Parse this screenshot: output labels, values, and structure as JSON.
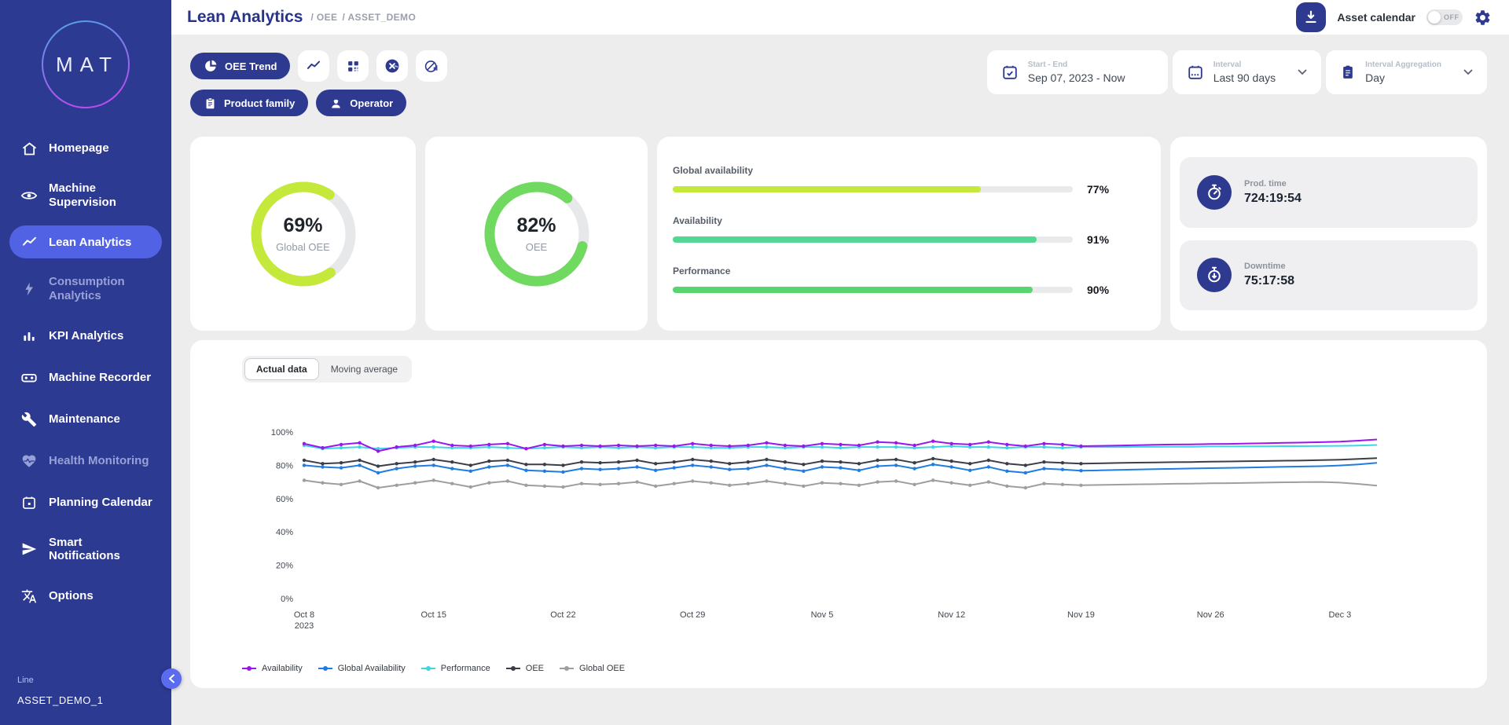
{
  "sidebar": {
    "logo": "MAT",
    "items": [
      {
        "label": "Homepage",
        "icon": "home-icon",
        "active": false,
        "dimmed": false
      },
      {
        "label": "Machine Supervision",
        "icon": "eye-icon",
        "active": false,
        "dimmed": false
      },
      {
        "label": "Lean Analytics",
        "icon": "trend-line-icon",
        "active": true,
        "dimmed": false
      },
      {
        "label": "Consumption Analytics",
        "icon": "lightning-icon",
        "active": false,
        "dimmed": true
      },
      {
        "label": "KPI Analytics",
        "icon": "bar-chart-icon",
        "active": false,
        "dimmed": false
      },
      {
        "label": "Machine Recorder",
        "icon": "recorder-icon",
        "active": false,
        "dimmed": false
      },
      {
        "label": "Maintenance",
        "icon": "wrench-icon",
        "active": false,
        "dimmed": false
      },
      {
        "label": "Health Monitoring",
        "icon": "heart-pulse-icon",
        "active": false,
        "dimmed": true
      },
      {
        "label": "Planning Calendar",
        "icon": "calendar-icon",
        "active": false,
        "dimmed": false
      },
      {
        "label": "Smart Notifications",
        "icon": "paper-plane-icon",
        "active": false,
        "dimmed": false
      },
      {
        "label": "Options",
        "icon": "translate-icon",
        "active": false,
        "dimmed": false
      }
    ],
    "footer": {
      "line_label": "Line",
      "asset_name": "ASSET_DEMO_1"
    }
  },
  "header": {
    "title": "Lean Analytics",
    "breadcrumb": [
      "/ OEE",
      "/ ASSET_DEMO"
    ],
    "asset_calendar_label": "Asset calendar",
    "asset_calendar_state": "OFF"
  },
  "filters": {
    "primary_label": "OEE Trend",
    "pills": [
      "Product family",
      "Operator"
    ]
  },
  "date_controls": {
    "start_end": {
      "label": "Start - End",
      "value": "Sep 07, 2023 - Now"
    },
    "interval": {
      "label": "Interval",
      "value": "Last 90 days"
    },
    "aggregation": {
      "label": "Interval Aggregation",
      "value": "Day"
    }
  },
  "kpis": {
    "gauges": [
      {
        "value_label": "69%",
        "pct": 69,
        "label": "Global OEE",
        "color": "#c5e93b",
        "rotate": 55
      },
      {
        "value_label": "82%",
        "pct": 82,
        "label": "OEE",
        "color": "#70d95f",
        "rotate": 15
      }
    ],
    "bars": [
      {
        "label": "Global availability",
        "value_label": "77%",
        "pct": 77,
        "color": "#c5e93b"
      },
      {
        "label": "Availability",
        "value_label": "91%",
        "pct": 91,
        "color": "#54d795"
      },
      {
        "label": "Performance",
        "value_label": "90%",
        "pct": 90,
        "color": "#5ad46e"
      }
    ],
    "times": [
      {
        "label": "Prod. time",
        "value": "724:19:54",
        "icon": "stopwatch-icon"
      },
      {
        "label": "Downtime",
        "value": "75:17:58",
        "icon": "downtime-stopwatch-icon"
      }
    ]
  },
  "chart": {
    "tabs": [
      {
        "label": "Actual data",
        "active": true
      },
      {
        "label": "Moving average",
        "active": false
      }
    ]
  },
  "chart_data": {
    "type": "line",
    "title": "OEE Trend - Actual data",
    "ylim": [
      0,
      100
    ],
    "yticks": [
      0,
      20,
      40,
      60,
      80,
      100
    ],
    "x_days_max": 58,
    "markers_until_index": 42,
    "grid": false,
    "legend_position": "bottom",
    "xticks": [
      {
        "pos": 0,
        "label": "Oct 8",
        "sub": "2023"
      },
      {
        "pos": 7,
        "label": "Oct 15"
      },
      {
        "pos": 14,
        "label": "Oct 22"
      },
      {
        "pos": 21,
        "label": "Oct 29"
      },
      {
        "pos": 28,
        "label": "Nov 5"
      },
      {
        "pos": 35,
        "label": "Nov 12"
      },
      {
        "pos": 42,
        "label": "Nov 19"
      },
      {
        "pos": 49,
        "label": "Nov 26"
      },
      {
        "pos": 56,
        "label": "Dec 3"
      }
    ],
    "series": [
      {
        "name": "Availability",
        "color": "#9b16ec",
        "values": [
          93,
          90.5,
          92.5,
          93.5,
          88.5,
          91,
          92,
          94.5,
          92,
          91.5,
          92.5,
          93,
          90,
          92.5,
          91.5,
          92,
          91.5,
          92,
          91.5,
          92,
          91.5,
          93,
          92,
          91.5,
          92,
          93.5,
          92,
          91.5,
          93,
          92.5,
          92,
          94,
          93.5,
          92,
          94.5,
          93,
          92.5,
          94,
          92.5,
          91.5,
          93,
          92.5,
          91.5,
          91.7,
          91.9,
          92.1,
          92.3,
          92.5,
          92.6,
          92.8,
          92.9,
          93.1,
          93.3,
          93.5,
          93.7,
          93.9,
          94.2,
          94.8,
          95.5
        ]
      },
      {
        "name": "Global Availability",
        "color": "#1e7ce2",
        "values": [
          80,
          79,
          78.5,
          80,
          75.5,
          78,
          79.5,
          80,
          78,
          76.5,
          79,
          80,
          77,
          76.5,
          76,
          78,
          77.5,
          78,
          79,
          77,
          78.5,
          80,
          79,
          77.5,
          78,
          80,
          78,
          76.5,
          79,
          78.5,
          77,
          79.5,
          80,
          78,
          80.5,
          79,
          77,
          79,
          76.5,
          75.5,
          78,
          77.5,
          76.8,
          77,
          77.2,
          77.5,
          77.7,
          77.9,
          78.1,
          78.3,
          78.5,
          78.7,
          78.9,
          79.1,
          79.3,
          79.5,
          79.9,
          80.5,
          81.5
        ]
      },
      {
        "name": "Performance",
        "color": "#3fd4e6",
        "values": [
          92,
          90,
          90.5,
          91,
          90,
          90.5,
          91,
          91,
          90.5,
          90.5,
          91,
          90.5,
          90,
          90.5,
          91,
          90.5,
          91,
          90.5,
          91,
          90.5,
          91,
          91,
          90.5,
          90.5,
          91,
          91,
          90.5,
          91,
          91,
          90.5,
          91,
          91,
          91,
          90.5,
          91,
          91.5,
          91,
          91,
          90.5,
          91,
          91,
          90.5,
          91,
          91,
          91,
          91.1,
          91.1,
          91.2,
          91.2,
          91.3,
          91.3,
          91.4,
          91.4,
          91.5,
          91.5,
          91.6,
          91.7,
          91.9,
          92.2
        ]
      },
      {
        "name": "OEE",
        "color": "#3a3f47",
        "values": [
          83,
          81,
          81.5,
          83,
          79.5,
          81,
          82,
          83.5,
          82,
          80,
          82.5,
          83,
          80.5,
          80.5,
          80,
          82,
          81.5,
          82,
          83,
          81,
          82,
          83.5,
          82.5,
          81,
          82,
          83.5,
          82,
          80.5,
          82.5,
          82,
          81,
          83,
          83.5,
          81.5,
          84,
          82.5,
          81,
          83,
          81,
          80,
          82,
          81.5,
          81,
          81.2,
          81.4,
          81.6,
          81.7,
          81.9,
          82,
          82.2,
          82.3,
          82.5,
          82.6,
          82.8,
          82.9,
          83.1,
          83.4,
          83.8,
          84.3
        ]
      },
      {
        "name": "Global OEE",
        "color": "#9e9e9e",
        "values": [
          71,
          69.5,
          68.5,
          70.5,
          66.5,
          68,
          69.5,
          71,
          69,
          67,
          69.5,
          70.5,
          68,
          67.5,
          67,
          69,
          68.5,
          69,
          70,
          67.5,
          69,
          70.5,
          69.5,
          68,
          69,
          70.5,
          69,
          67.5,
          69.5,
          69,
          68,
          70,
          70.5,
          68.5,
          71,
          69.5,
          68,
          70,
          67.5,
          66.5,
          69,
          68.5,
          68,
          68.2,
          68.4,
          68.6,
          68.7,
          68.9,
          69,
          69.2,
          69.3,
          69.5,
          69.6,
          69.8,
          69.9,
          70,
          69.6,
          68.8,
          67.8
        ]
      }
    ]
  }
}
